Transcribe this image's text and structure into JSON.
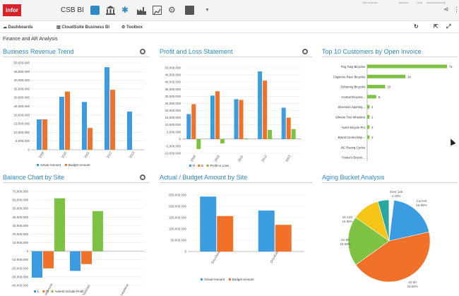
{
  "app": {
    "logo": "infor",
    "brand": "CSB BI",
    "toolbar_icons": [
      "apps-icon",
      "bank-icon",
      "star-icon",
      "factory-icon",
      "chart-icon",
      "gear-icon",
      "document-icon"
    ],
    "header_right": [
      "Site Activate",
      "",
      "Browse",
      "Help",
      "administrator@"
    ]
  },
  "nav": {
    "dashboards": "Dashboards",
    "cloudsuite": "CloudSuite Business BI",
    "toolbox": "Toolbox"
  },
  "page_title": "Finance and AR Analysis",
  "panels": [
    {
      "id": "business-revenue-trend",
      "title": "Business Revenue Trend"
    },
    {
      "id": "profit-loss-statement",
      "title": "Profit and Loss Statement"
    },
    {
      "id": "top10-customers",
      "title": "Top 10 Customers by Open Invoice"
    },
    {
      "id": "balance-chart",
      "title": "Balance Chart by Site"
    },
    {
      "id": "actual-budget",
      "title": "Actual / Budget Amount by Site"
    },
    {
      "id": "aging-bucket",
      "title": "Aging Bucket Analysis"
    }
  ],
  "colors": {
    "blue": "#3b9ce2",
    "orange": "#f07127",
    "green": "#7dc242",
    "yellow": "#f5c518",
    "title": "#2e8ac7"
  },
  "chart_data": [
    {
      "type": "bar",
      "title": "Business Revenue Trend",
      "categories": [
        "2009",
        "2010",
        "2011",
        "2012",
        "2013"
      ],
      "series": [
        {
          "name": "Actual Amount",
          "values": [
            17500000,
            30500000,
            27500000,
            47500000,
            22000000
          ]
        },
        {
          "name": "Budget Amount",
          "values": [
            17500000,
            33500000,
            12500000,
            34500000,
            null
          ]
        }
      ],
      "ylim": [
        0,
        50000000
      ],
      "yticks": [
        "50,000,000",
        "45,000,000",
        "40,000,000",
        "35,000,000",
        "30,000,000",
        "25,000,000",
        "20,000,000",
        "15,000,000",
        "10,000,000",
        "5,000,000",
        "0"
      ]
    },
    {
      "type": "bar",
      "title": "Profit and Loss Statement",
      "categories": [
        "2009",
        "2010",
        "2011",
        "2012",
        "2013"
      ],
      "series": [
        {
          "name": "R",
          "values": [
            17500000,
            30500000,
            28000000,
            47500000,
            22000000
          ]
        },
        {
          "name": "E",
          "values": [
            24500000,
            33500000,
            27500000,
            41000000,
            15000000
          ]
        },
        {
          "name": "Profit or Loss",
          "values": [
            -7000000,
            -3000000,
            500000,
            6500000,
            7000000
          ]
        }
      ],
      "ylim": [
        -10000000,
        50000000
      ],
      "yticks": [
        "50,000,000",
        "45,000,000",
        "40,000,000",
        "35,000,000",
        "30,000,000",
        "25,000,000",
        "20,000,000",
        "15,000,000",
        "10,000,000",
        "5,000,000",
        "0",
        "-5,000,000",
        "-10,000,000"
      ]
    },
    {
      "type": "bar",
      "orientation": "horizontal",
      "title": "Top 10 Customers by Open Invoice",
      "categories": [
        "Ting Tang Bicycles",
        "Claymore Race Bicycles",
        "Schwinng Bicycles",
        "Central Bicycles...",
        "Slovenian Sporting...",
        "Gilmore Two Wheelers",
        "Ivan's Bicycle Pro",
        "Brand Central Dep...",
        "BC Racing Cycles",
        "Foster's Bicycle..."
      ],
      "values": [
        71,
        34,
        16,
        8,
        2,
        2,
        2,
        2,
        null,
        null
      ],
      "value_labels": [
        "71",
        "34",
        "16",
        "8",
        "2",
        "2",
        "2",
        "2",
        "",
        ""
      ]
    },
    {
      "type": "bar",
      "title": "Balance Chart by Site",
      "categories": [
        "DuisSound",
        "DuisEast",
        "OneyWest"
      ],
      "series": [
        {
          "name": "L",
          "values": [
            -31000000,
            -23000000,
            null
          ]
        },
        {
          "name": "O",
          "values": [
            -20000000,
            -15000000,
            null
          ]
        },
        {
          "name": "Assets Include Profit",
          "values": [
            62000000,
            47000000,
            null
          ]
        }
      ],
      "ylim": [
        -40000000,
        70000000
      ],
      "yticks": [
        "70,000,000",
        "60,000,000",
        "50,000,000",
        "40,000,000",
        "30,000,000",
        "20,000,000",
        "10,000,000",
        "0",
        "-10,000,000",
        "-20,000,000",
        "-30,000,000",
        "-40,000,000"
      ]
    },
    {
      "type": "bar",
      "title": "Actual / Budget Amount by Site",
      "categories": [
        "OnyxSouth",
        "OnyxEast"
      ],
      "series": [
        {
          "name": "Actual Amount",
          "values": [
            243000000,
            181000000
          ]
        },
        {
          "name": "Budget Amount",
          "values": [
            157000000,
            118000000
          ]
        }
      ],
      "ylim": [
        0,
        250000000
      ],
      "yticks": [
        "250,000,000",
        "200,000,000",
        "150,000,000",
        "100,000,000",
        "50,000,000",
        "0"
      ]
    },
    {
      "type": "pie",
      "title": "Aging Bucket Analysis",
      "slices": [
        {
          "label": "Current",
          "pct": "19.58%",
          "value": 19.58
        },
        {
          "label": "31-60",
          "pct": "43.63%",
          "value": 43.63
        },
        {
          "label": "61-90",
          "pct": "19.59%",
          "value": 19.59
        },
        {
          "label": "91-120",
          "pct": "10.89%",
          "value": 10.89
        },
        {
          "label": "Over 120",
          "pct": "4.33%",
          "value": 4.33
        }
      ]
    }
  ]
}
